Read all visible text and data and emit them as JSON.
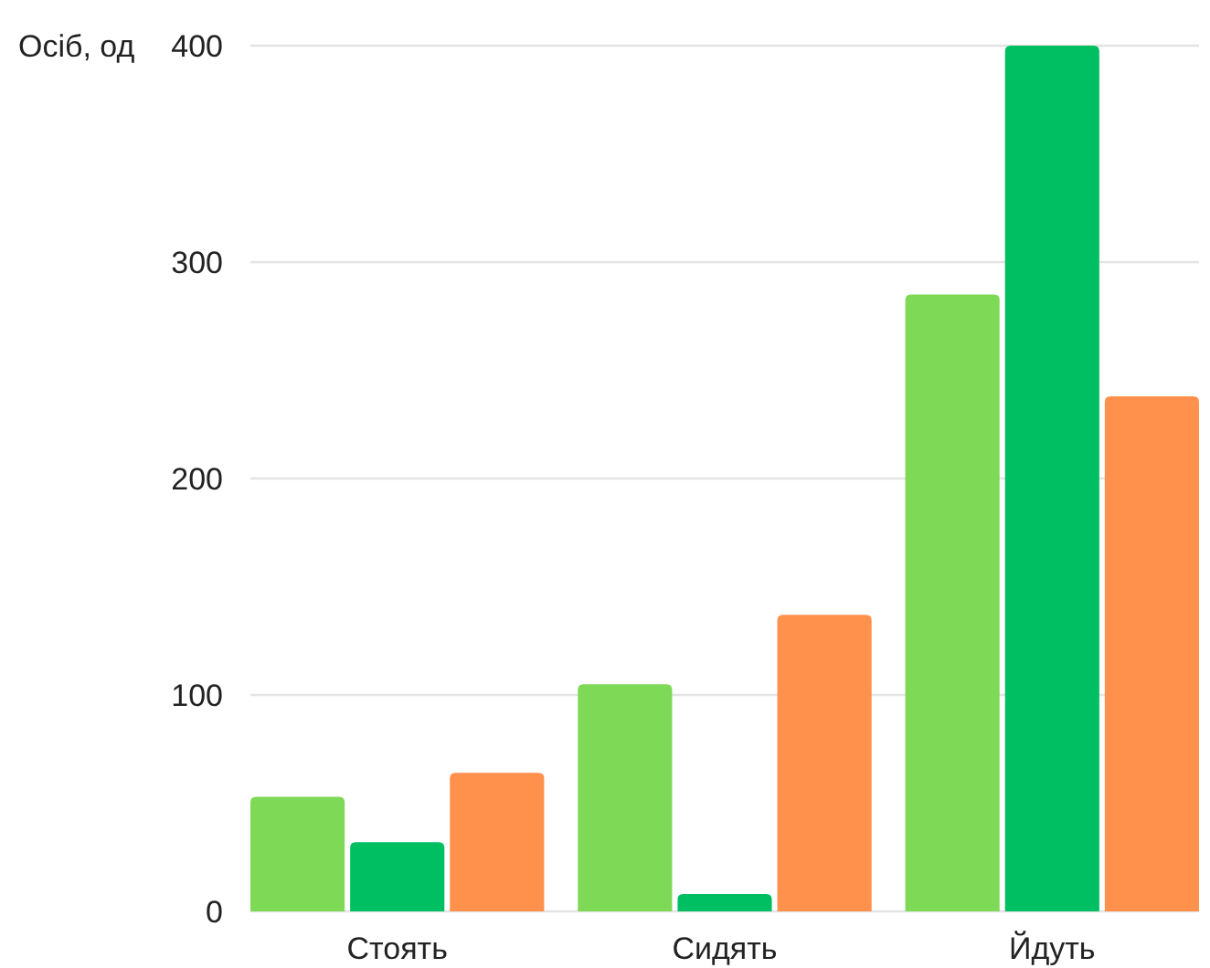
{
  "chart_data": {
    "type": "bar",
    "ylabel": "Осіб, од",
    "categories": [
      "Стоять",
      "Сидять",
      "Йдуть"
    ],
    "series": [
      {
        "color": "#7ed957",
        "values": [
          53,
          105,
          285
        ]
      },
      {
        "color": "#00bf63",
        "values": [
          32,
          8,
          400
        ]
      },
      {
        "color": "#ff914d",
        "values": [
          64,
          137,
          238
        ]
      }
    ],
    "ylim": [
      0,
      400
    ],
    "yticks": [
      0,
      100,
      200,
      300,
      400
    ],
    "grid": "y"
  }
}
